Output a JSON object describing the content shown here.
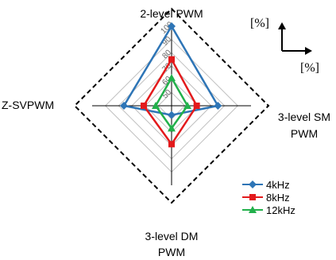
{
  "chart_data": {
    "type": "radar",
    "axes": [
      "2-level PWM",
      "3-level SM PWM",
      "3-level DM PWM",
      "Z-SVPWM"
    ],
    "axis_label_lines": [
      [
        "2-level PWM"
      ],
      [
        "3-level SM",
        "PWM"
      ],
      [
        "3-level DM",
        "PWM"
      ],
      [
        "Z-SVPWM"
      ]
    ],
    "range": [
      40,
      100
    ],
    "tick_values": [
      50,
      60,
      70,
      80,
      90,
      100
    ],
    "tick_labels": [
      "50",
      "60",
      "70",
      "80",
      "90",
      "100"
    ],
    "unit_labels": [
      "[%]",
      "[%]"
    ],
    "series": [
      {
        "name": "4kHz",
        "values": [
          100,
          75,
          47,
          76
        ],
        "color": "#2e75b6",
        "marker": "diamond"
      },
      {
        "name": "8kHz",
        "values": [
          75,
          59,
          69,
          61
        ],
        "color": "#e31a1c",
        "marker": "square"
      },
      {
        "name": "12kHz",
        "values": [
          61,
          52,
          57,
          52
        ],
        "color": "#22b04b",
        "marker": "triangle"
      }
    ],
    "legend_position": "bottom-right",
    "grid": true
  }
}
